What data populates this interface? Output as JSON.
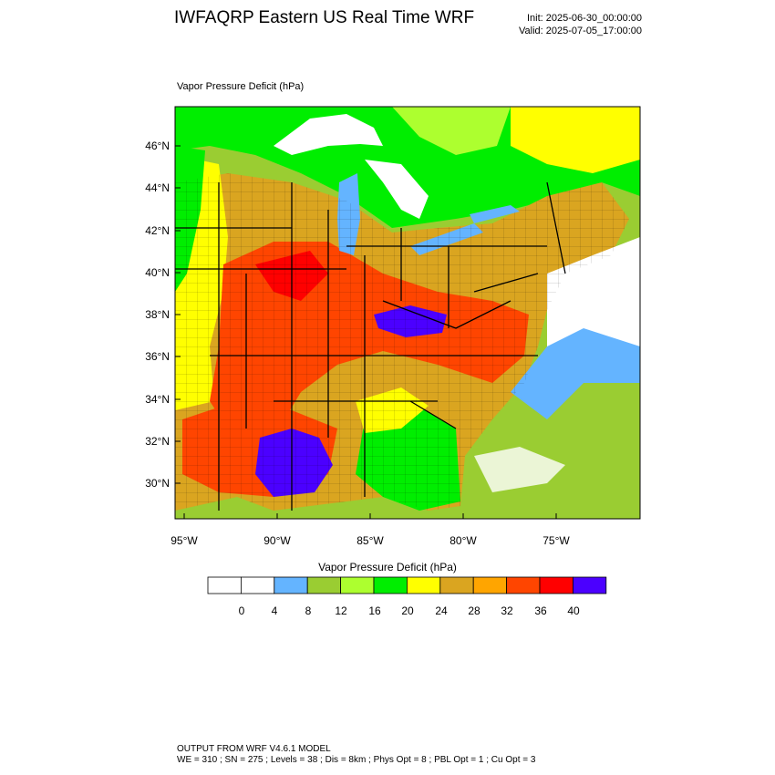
{
  "header": {
    "title": "IWFAQRP Eastern US Real Time WRF",
    "init": "Init: 2025-06-30_00:00:00",
    "valid": "Valid: 2025-07-05_17:00:00"
  },
  "map": {
    "variable_label": "Vapor Pressure Deficit   (hPa)",
    "lat_labels": [
      "30°N",
      "32°N",
      "34°N",
      "36°N",
      "38°N",
      "40°N",
      "42°N",
      "44°N",
      "46°N"
    ],
    "lon_labels": [
      "95°W",
      "90°W",
      "85°W",
      "80°W",
      "75°W"
    ]
  },
  "colorbar": {
    "title": "Vapor Pressure Deficit  (hPa)",
    "tick_labels": [
      "0",
      "4",
      "8",
      "12",
      "16",
      "20",
      "24",
      "28",
      "32",
      "36",
      "40"
    ],
    "colors": [
      "#ffffff",
      "#ffffff",
      "#64b4ff",
      "#9acd32",
      "#adff2f",
      "#00ee00",
      "#ffff00",
      "#daa520",
      "#ffa500",
      "#ff4500",
      "#ff0000",
      "#4b00ff"
    ]
  },
  "footer": {
    "line1": "OUTPUT FROM WRF V4.6.1 MODEL",
    "line2": "WE = 310 ; SN = 275 ; Levels = 38 ; Dis = 8km ; Phys Opt = 8 ; PBL Opt = 1 ; Cu Opt = 3"
  }
}
